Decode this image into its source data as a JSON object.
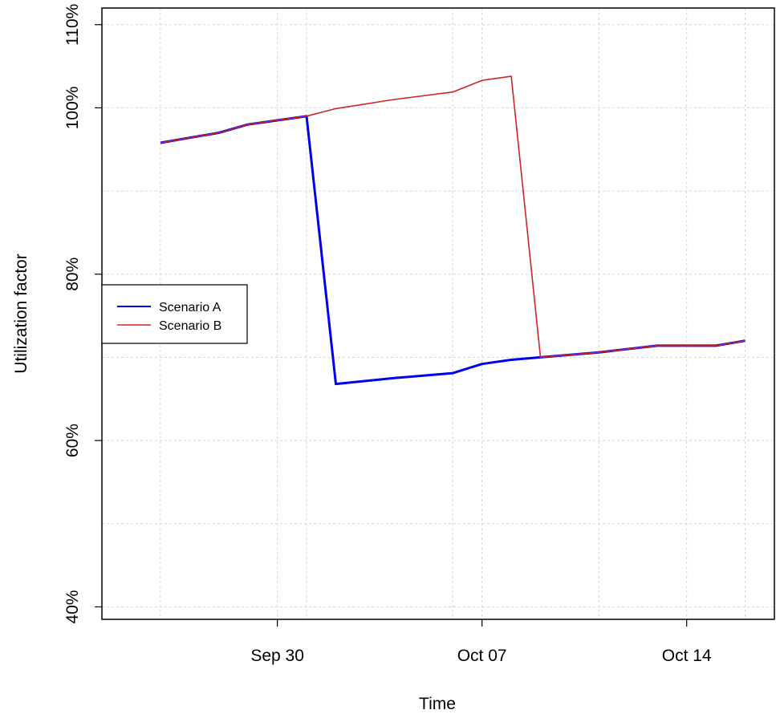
{
  "chart_data": {
    "type": "line",
    "title": "",
    "xlabel": "Time",
    "ylabel": "Utilization factor",
    "x_type": "date",
    "xlim": [
      "2024-09-24",
      "2024-10-17"
    ],
    "ylim": [
      38.5,
      112
    ],
    "x_ticks": [
      {
        "date": "2024-09-30",
        "label": "Sep 30"
      },
      {
        "date": "2024-10-07",
        "label": "Oct 07"
      },
      {
        "date": "2024-10-14",
        "label": "Oct 14"
      }
    ],
    "x_grid_dates": [
      "2024-09-26",
      "2024-09-30",
      "2024-10-01",
      "2024-10-06",
      "2024-10-07",
      "2024-10-11",
      "2024-10-14",
      "2024-10-16"
    ],
    "y_ticks": [
      {
        "value": 40,
        "label": "40%"
      },
      {
        "value": 60,
        "label": "60%"
      },
      {
        "value": 80,
        "label": "80%"
      },
      {
        "value": 100,
        "label": "100%"
      },
      {
        "value": 110,
        "label": "110%"
      }
    ],
    "y_grid_values": [
      40,
      50,
      60,
      70,
      80,
      90,
      100,
      110
    ],
    "grid": true,
    "legend_position": "left",
    "series": [
      {
        "name": "Scenario A",
        "color": "#0000ee",
        "points": [
          {
            "x": "2024-09-26",
            "y": 95.8
          },
          {
            "x": "2024-09-28",
            "y": 97.0
          },
          {
            "x": "2024-09-29",
            "y": 98.0
          },
          {
            "x": "2024-10-01",
            "y": 99.0
          },
          {
            "x": "2024-10-02",
            "y": 66.8
          },
          {
            "x": "2024-10-04",
            "y": 67.5
          },
          {
            "x": "2024-10-06",
            "y": 68.1
          },
          {
            "x": "2024-10-07",
            "y": 69.2
          },
          {
            "x": "2024-10-08",
            "y": 69.7
          },
          {
            "x": "2024-10-09",
            "y": 70.0
          },
          {
            "x": "2024-10-11",
            "y": 70.6
          },
          {
            "x": "2024-10-13",
            "y": 71.4
          },
          {
            "x": "2024-10-15",
            "y": 71.4
          },
          {
            "x": "2024-10-16",
            "y": 72.0
          }
        ]
      },
      {
        "name": "Scenario B",
        "color": "#cd2626",
        "points": [
          {
            "x": "2024-09-26",
            "y": 95.8
          },
          {
            "x": "2024-09-28",
            "y": 97.0
          },
          {
            "x": "2024-09-29",
            "y": 98.0
          },
          {
            "x": "2024-10-01",
            "y": 99.0
          },
          {
            "x": "2024-10-02",
            "y": 99.9
          },
          {
            "x": "2024-10-04",
            "y": 101.0
          },
          {
            "x": "2024-10-06",
            "y": 101.9
          },
          {
            "x": "2024-10-07",
            "y": 103.3
          },
          {
            "x": "2024-10-08",
            "y": 103.8
          },
          {
            "x": "2024-10-09",
            "y": 70.0
          },
          {
            "x": "2024-10-11",
            "y": 70.6
          },
          {
            "x": "2024-10-13",
            "y": 71.4
          },
          {
            "x": "2024-10-15",
            "y": 71.4
          },
          {
            "x": "2024-10-16",
            "y": 72.0
          }
        ]
      }
    ]
  }
}
